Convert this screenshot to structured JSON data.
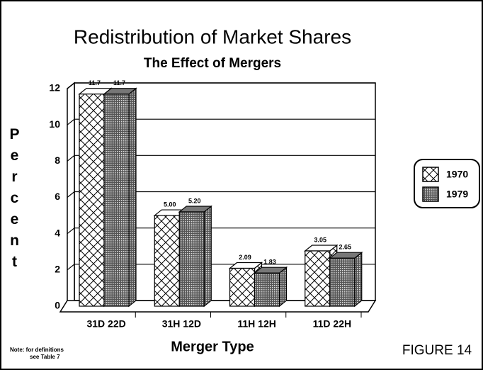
{
  "chart_data": {
    "type": "bar3d",
    "title": "Redistribution of Market Shares",
    "subtitle": "The Effect of Mergers",
    "x_label": "Merger Type",
    "y_label": "Percent",
    "categories": [
      "31D 22D",
      "31H 12D",
      "11H 12H",
      "11D 22H"
    ],
    "series": [
      {
        "name": "1970",
        "color": "#ffffff",
        "pattern": "crosshatch",
        "values": [
          11.7,
          5,
          2.09,
          3.05
        ],
        "value_labels": [
          "11.7",
          "5.00",
          "2.09",
          "3.05"
        ]
      },
      {
        "name": "1979",
        "color": "#555555",
        "pattern": "dots",
        "values": [
          11.7,
          5.2,
          1.83,
          2.65
        ],
        "value_labels": [
          "11.7",
          "5.20",
          "1.83",
          "2.65"
        ]
      }
    ],
    "ylim": [
      0,
      12
    ],
    "yticks": [
      0,
      2,
      4,
      6,
      8,
      10,
      12
    ],
    "grid": true,
    "legend": "right"
  },
  "note": [
    "Note: for definitions",
    "see Table 7"
  ],
  "figure_label": "FIGURE 14"
}
